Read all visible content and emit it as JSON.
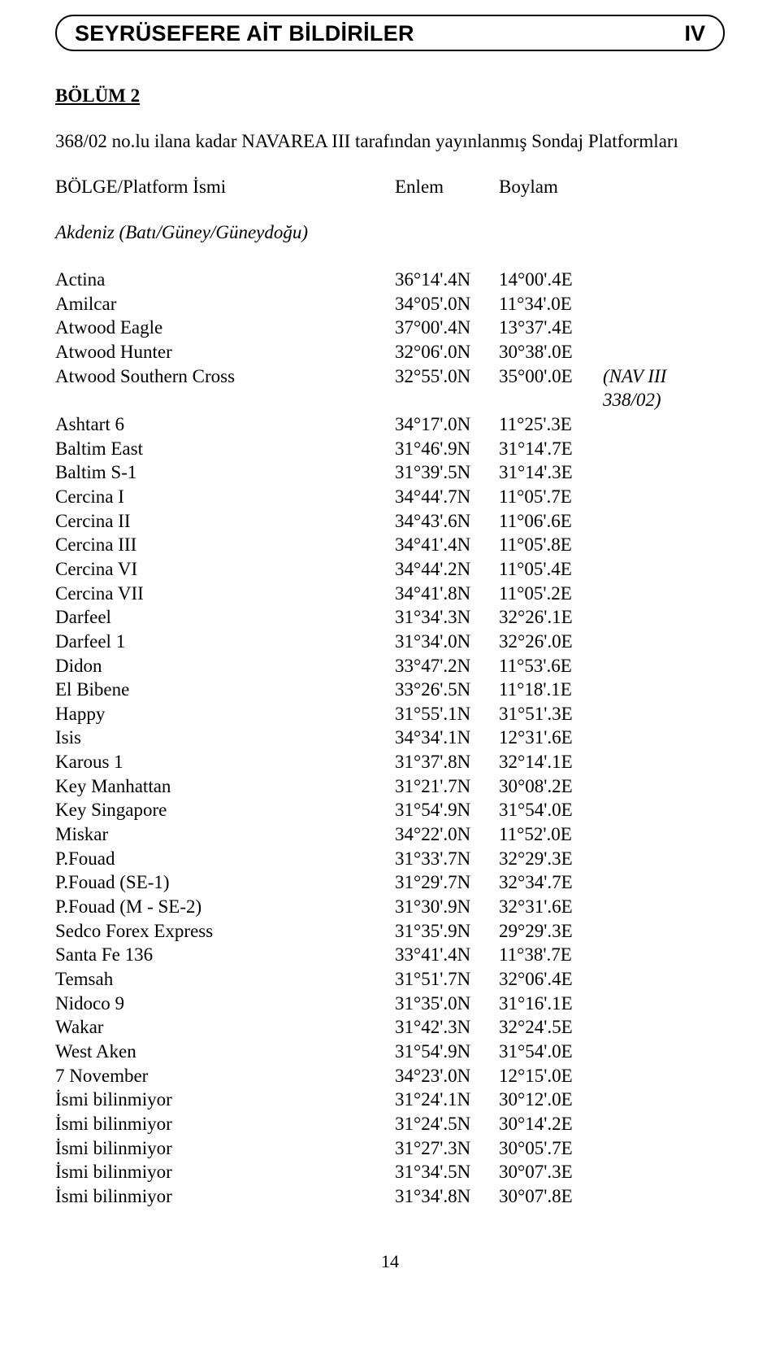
{
  "header": {
    "title": "SEYRÜSEFERE AİT BİLDİRİLER",
    "roman": "IV"
  },
  "section_title": "BÖLÜM 2",
  "intro": "368/02 no.lu ilana kadar NAVAREA III tarafından yayınlanmış Sondaj Platformları",
  "columns": {
    "c1": "BÖLGE/Platform İsmi",
    "c2": "Enlem",
    "c3": "Boylam"
  },
  "region": "Akdeniz (Batı/Güney/Güneydoğu)",
  "rows": [
    {
      "name": "Actina",
      "lat": "36°14'.4N",
      "lon": "14°00'.4E",
      "note": ""
    },
    {
      "name": "Amilcar",
      "lat": "34°05'.0N",
      "lon": "11°34'.0E",
      "note": ""
    },
    {
      "name": "Atwood Eagle",
      "lat": "37°00'.4N",
      "lon": "13°37'.4E",
      "note": ""
    },
    {
      "name": "Atwood Hunter",
      "lat": "32°06'.0N",
      "lon": "30°38'.0E",
      "note": ""
    },
    {
      "name": "Atwood Southern Cross",
      "lat": "32°55'.0N",
      "lon": "35°00'.0E",
      "note": "(NAV III 338/02)"
    },
    {
      "name": "Ashtart 6",
      "lat": "34°17'.0N",
      "lon": "11°25'.3E",
      "note": ""
    },
    {
      "name": "Baltim East",
      "lat": "31°46'.9N",
      "lon": "31°14'.7E",
      "note": ""
    },
    {
      "name": "Baltim S-1",
      "lat": "31°39'.5N",
      "lon": "31°14'.3E",
      "note": ""
    },
    {
      "name": "Cercina I",
      "lat": "34°44'.7N",
      "lon": "11°05'.7E",
      "note": ""
    },
    {
      "name": "Cercina II",
      "lat": "34°43'.6N",
      "lon": "11°06'.6E",
      "note": ""
    },
    {
      "name": "Cercina III",
      "lat": "34°41'.4N",
      "lon": "11°05'.8E",
      "note": ""
    },
    {
      "name": "Cercina VI",
      "lat": "34°44'.2N",
      "lon": "11°05'.4E",
      "note": ""
    },
    {
      "name": "Cercina VII",
      "lat": "34°41'.8N",
      "lon": "11°05'.2E",
      "note": ""
    },
    {
      "name": "Darfeel",
      "lat": "31°34'.3N",
      "lon": "32°26'.1E",
      "note": ""
    },
    {
      "name": "Darfeel 1",
      "lat": "31°34'.0N",
      "lon": "32°26'.0E",
      "note": ""
    },
    {
      "name": "Didon",
      "lat": "33°47'.2N",
      "lon": "11°53'.6E",
      "note": ""
    },
    {
      "name": "El Bibene",
      "lat": "33°26'.5N",
      "lon": "11°18'.1E",
      "note": ""
    },
    {
      "name": "Happy",
      "lat": "31°55'.1N",
      "lon": "31°51'.3E",
      "note": ""
    },
    {
      "name": "Isis",
      "lat": "34°34'.1N",
      "lon": "12°31'.6E",
      "note": ""
    },
    {
      "name": "Karous 1",
      "lat": "31°37'.8N",
      "lon": "32°14'.1E",
      "note": ""
    },
    {
      "name": "Key Manhattan",
      "lat": "31°21'.7N",
      "lon": "30°08'.2E",
      "note": ""
    },
    {
      "name": "Key Singapore",
      "lat": "31°54'.9N",
      "lon": "31°54'.0E",
      "note": ""
    },
    {
      "name": "Miskar",
      "lat": "34°22'.0N",
      "lon": "11°52'.0E",
      "note": ""
    },
    {
      "name": "P.Fouad",
      "lat": "31°33'.7N",
      "lon": "32°29'.3E",
      "note": ""
    },
    {
      "name": "P.Fouad (SE-1)",
      "lat": "31°29'.7N",
      "lon": "32°34'.7E",
      "note": ""
    },
    {
      "name": "P.Fouad (M - SE-2)",
      "lat": "31°30'.9N",
      "lon": "32°31'.6E",
      "note": ""
    },
    {
      "name": "Sedco Forex Express",
      "lat": "31°35'.9N",
      "lon": "29°29'.3E",
      "note": ""
    },
    {
      "name": "Santa Fe 136",
      "lat": "33°41'.4N",
      "lon": "11°38'.7E",
      "note": ""
    },
    {
      "name": "Temsah",
      "lat": "31°51'.7N",
      "lon": "32°06'.4E",
      "note": ""
    },
    {
      "name": "Nidoco 9",
      "lat": "31°35'.0N",
      "lon": "31°16'.1E",
      "note": ""
    },
    {
      "name": "Wakar",
      "lat": "31°42'.3N",
      "lon": "32°24'.5E",
      "note": ""
    },
    {
      "name": "West Aken",
      "lat": "31°54'.9N",
      "lon": "31°54'.0E",
      "note": ""
    },
    {
      "name": "7 November",
      "lat": "34°23'.0N",
      "lon": "12°15'.0E",
      "note": ""
    },
    {
      "name": "İsmi bilinmiyor",
      "lat": "31°24'.1N",
      "lon": "30°12'.0E",
      "note": ""
    },
    {
      "name": "İsmi bilinmiyor",
      "lat": "31°24'.5N",
      "lon": "30°14'.2E",
      "note": ""
    },
    {
      "name": "İsmi bilinmiyor",
      "lat": "31°27'.3N",
      "lon": "30°05'.7E",
      "note": ""
    },
    {
      "name": "İsmi bilinmiyor",
      "lat": "31°34'.5N",
      "lon": "30°07'.3E",
      "note": ""
    },
    {
      "name": "İsmi bilinmiyor",
      "lat": "31°34'.8N",
      "lon": "30°07'.8E",
      "note": ""
    }
  ],
  "page_number": "14"
}
